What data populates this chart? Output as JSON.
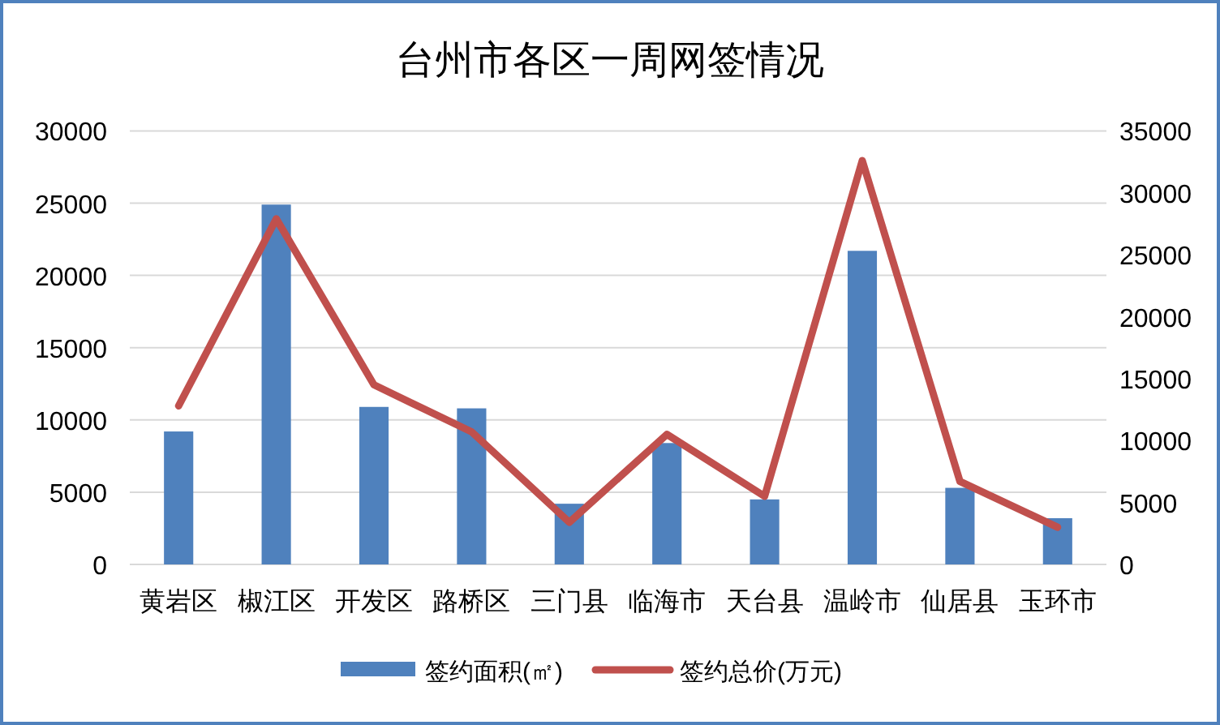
{
  "chart_data": {
    "type": "bar",
    "title": "台州市各区一周网签情况",
    "categories": [
      "黄岩区",
      "椒江区",
      "开发区",
      "路桥区",
      "三门县",
      "临海市",
      "天台县",
      "温岭市",
      "仙居县",
      "玉环市"
    ],
    "series": [
      {
        "name": "签约面积(㎡)",
        "color": "#4f81bd",
        "values": [
          9200,
          24900,
          10900,
          10800,
          4200,
          8400,
          4500,
          21700,
          5300,
          3200
        ]
      },
      {
        "name": "签约总价(万元)",
        "type": "line",
        "axis": "y2",
        "color": "#c0504d",
        "values": [
          12800,
          27900,
          14500,
          10700,
          3400,
          10500,
          5500,
          32600,
          6700,
          3000
        ]
      }
    ],
    "ylim": [
      0,
      30000
    ],
    "yticks": [
      0,
      5000,
      10000,
      15000,
      20000,
      25000,
      30000
    ],
    "y2lim": [
      0,
      35000
    ],
    "y2ticks": [
      0,
      5000,
      10000,
      15000,
      20000,
      25000,
      30000,
      35000
    ],
    "grid": "y",
    "legend": "bottom",
    "marker": "none",
    "line_style": "solid"
  }
}
